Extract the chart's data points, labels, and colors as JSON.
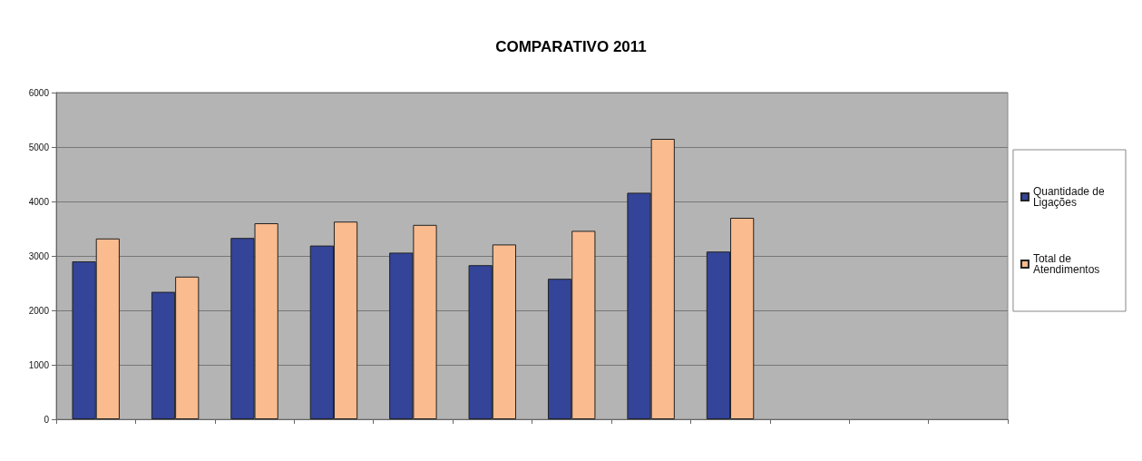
{
  "chart_data": {
    "type": "bar",
    "title": "COMPARATIVO 2011",
    "categories": [
      null,
      null,
      null,
      null,
      null,
      null,
      null,
      null,
      null,
      null,
      null,
      null
    ],
    "series": [
      {
        "name": "Quantidade de Ligações",
        "color": "#334499",
        "values": [
          2900,
          2340,
          3330,
          3190,
          3060,
          2830,
          2580,
          4160,
          3080,
          null,
          null,
          null
        ]
      },
      {
        "name": "Total de Atendimentos",
        "color": "#fabb8e",
        "values": [
          3320,
          2620,
          3600,
          3630,
          3570,
          3210,
          3460,
          5150,
          3700,
          null,
          null,
          null
        ]
      }
    ],
    "ylim": [
      0,
      6000
    ],
    "yticks": [
      0,
      1000,
      2000,
      3000,
      4000,
      5000,
      6000
    ],
    "grid": "y",
    "legend": "right"
  }
}
